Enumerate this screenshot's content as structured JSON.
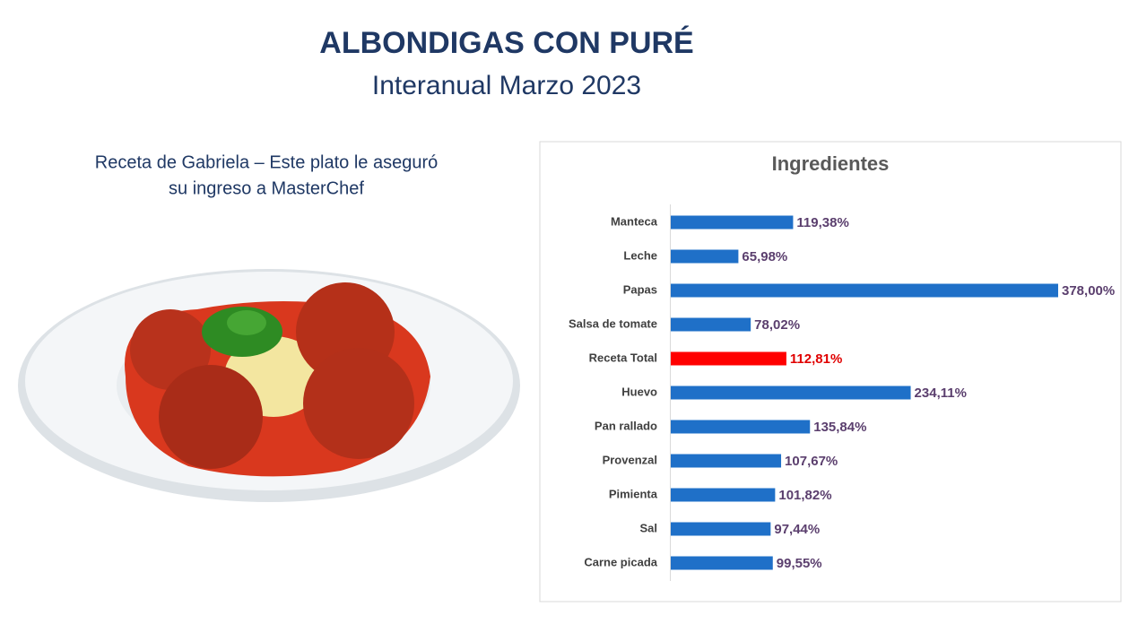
{
  "header": {
    "title": "ALBONDIGAS CON PURÉ",
    "subtitle": "Interanual Marzo 2023"
  },
  "caption": [
    "Receta de Gabriela – Este plato le aseguró",
    "su ingreso a MasterChef"
  ],
  "chart_data": {
    "type": "hbar",
    "title": "Ingredientes",
    "categories": [
      "Manteca",
      "Leche",
      "Papas",
      "Salsa de tomate",
      "Receta Total",
      "Huevo",
      "Pan rallado",
      "Provenzal",
      "Pimienta",
      "Sal",
      "Carne picada"
    ],
    "values": [
      119.38,
      65.98,
      378.0,
      78.02,
      112.81,
      234.11,
      135.84,
      107.67,
      101.82,
      97.44,
      99.55
    ],
    "value_labels": [
      "119,38%",
      "65,98%",
      "378,00%",
      "78,02%",
      "112,81%",
      "234,11%",
      "135,84%",
      "107,67%",
      "101,82%",
      "97,44%",
      "99,55%"
    ],
    "colors": [
      "#1f70c8",
      "#1f70c8",
      "#1f70c8",
      "#1f70c8",
      "#ff0000",
      "#1f70c8",
      "#1f70c8",
      "#1f70c8",
      "#1f70c8",
      "#1f70c8",
      "#1f70c8"
    ],
    "value_label_colors": [
      "#5b3f6e",
      "#5b3f6e",
      "#5b3f6e",
      "#5b3f6e",
      "#e00000",
      "#5b3f6e",
      "#5b3f6e",
      "#5b3f6e",
      "#5b3f6e",
      "#5b3f6e",
      "#5b3f6e"
    ]
  }
}
